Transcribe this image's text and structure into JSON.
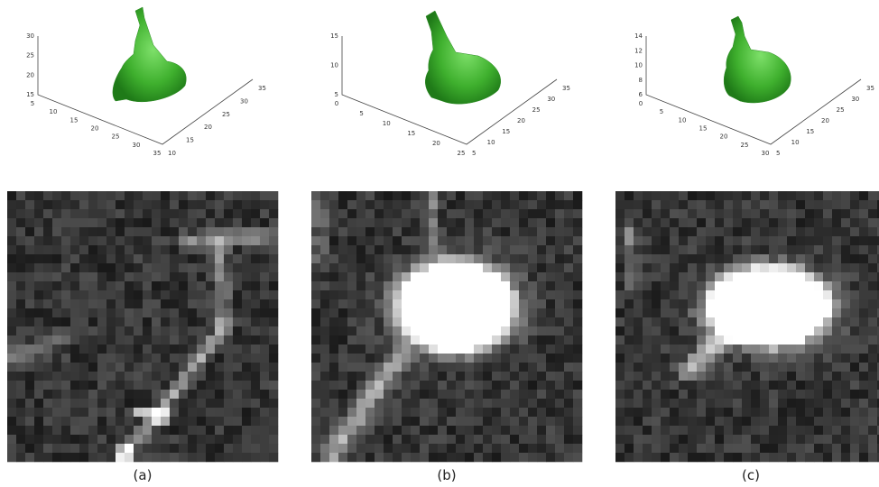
{
  "panels": [
    {
      "caption": "(a)",
      "z_ticks": [
        30,
        25,
        20,
        15
      ],
      "x_ticks": [
        5,
        10,
        15,
        20,
        25,
        30,
        35
      ],
      "y_ticks": [
        10,
        15,
        20,
        25,
        30,
        35
      ]
    },
    {
      "caption": "(b)",
      "z_ticks": [
        15,
        10,
        5
      ],
      "x_ticks": [
        0,
        5,
        10,
        15,
        20,
        25
      ],
      "y_ticks": [
        5,
        10,
        15,
        20,
        25,
        30,
        35
      ]
    },
    {
      "caption": "(c)",
      "z_ticks": [
        14,
        12,
        10,
        8,
        6
      ],
      "x_ticks": [
        0,
        5,
        10,
        15,
        20,
        25,
        30
      ],
      "y_ticks": [
        5,
        10,
        15,
        20,
        25,
        30,
        35
      ]
    }
  ]
}
